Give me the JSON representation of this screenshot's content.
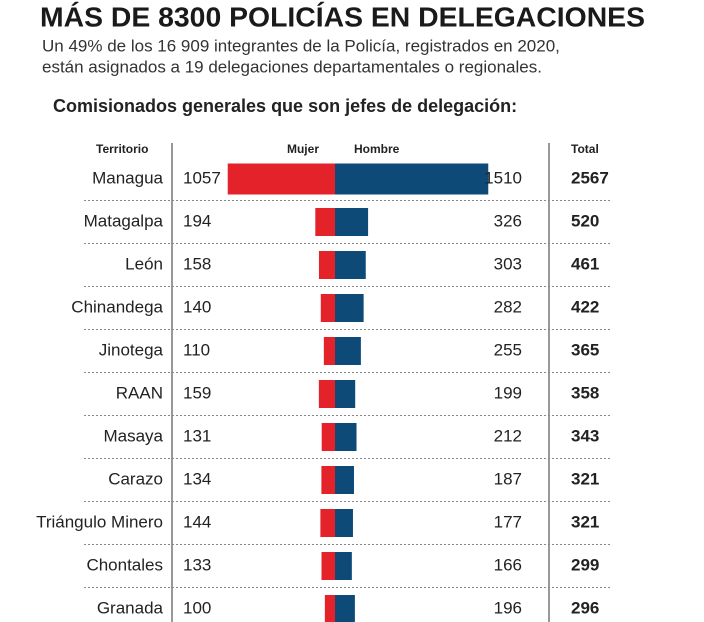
{
  "chart_data": {
    "type": "butterfly",
    "title": "MÁS DE 8300 POLICÍAS  EN DELEGACIONES",
    "subtitle": [
      "Un 49% de los 16 909 integrantes de la Policía, registrados en 2020,",
      "están asignados a 19 delegaciones departamentales o regionales."
    ],
    "heading": "Comisionados generales que son jefes de delegación:",
    "category_label": "Territorio",
    "total_label": "Total",
    "categories": [
      "Managua",
      "Matagalpa",
      "León",
      "Chinandega",
      "Jinotega",
      "RAAN",
      "Masaya",
      "Carazo",
      "Triángulo Minero",
      "Chontales",
      "Granada"
    ],
    "series": [
      {
        "name": "Mujer",
        "color": "#e3222a",
        "values": [
          1057,
          194,
          158,
          140,
          110,
          159,
          131,
          134,
          144,
          133,
          100
        ]
      },
      {
        "name": "Hombre",
        "color": "#0e4a78",
        "values": [
          1510,
          326,
          303,
          282,
          255,
          199,
          212,
          187,
          177,
          166,
          196
        ]
      }
    ],
    "totals": [
      2567,
      520,
      461,
      422,
      365,
      358,
      343,
      321,
      321,
      299,
      296
    ]
  }
}
